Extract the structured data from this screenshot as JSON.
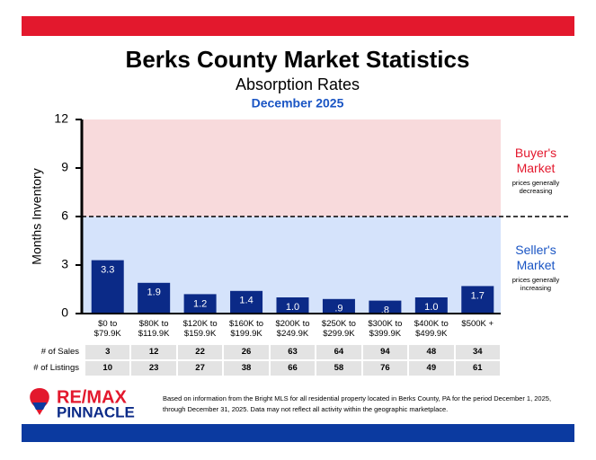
{
  "chart_data": {
    "type": "bar",
    "title": "Berks County Market Statistics",
    "subtitle": "Absorption Rates",
    "date": "December 2025",
    "y_label": "Months Inventory",
    "categories": [
      "$0 to $79.9K",
      "$80K to $119.9K",
      "$120K to $159.9K",
      "$160K to $199.9K",
      "$200K to $249.9K",
      "$250K to $299.9K",
      "$300K to $399.9K",
      "$400K to $499.9K",
      "$500K +"
    ],
    "values": [
      3.3,
      1.9,
      1.2,
      1.4,
      1.0,
      0.9,
      0.8,
      1.0,
      1.7
    ],
    "value_labels": [
      "3.3",
      "1.9",
      "1.2",
      "1.4",
      "1.0",
      ".9",
      ".8",
      "1.0",
      "1.7"
    ],
    "color": "#0b2a87",
    "ylim": [
      0,
      12
    ],
    "yticks": [
      0,
      3,
      6,
      9,
      12
    ],
    "threshold": 6,
    "zones": [
      {
        "label": "Buyer's Market",
        "note": "prices generally decreasing",
        "range": [
          6,
          12
        ],
        "color": "#f8dadc",
        "text_color": "#e3182d"
      },
      {
        "label": "Seller's Market",
        "note": "prices generally increasing",
        "range": [
          0,
          6
        ],
        "color": "#d5e3fb",
        "text_color": "#1a55c4"
      }
    ]
  },
  "table": {
    "rows": [
      {
        "label": "# of Sales",
        "values": [
          3,
          12,
          22,
          26,
          63,
          64,
          94,
          48,
          34
        ]
      },
      {
        "label": "# of Listings",
        "values": [
          10,
          23,
          27,
          38,
          66,
          58,
          76,
          49,
          61
        ]
      }
    ]
  },
  "footer": {
    "brand": "RE/MAX",
    "brand_sub": "PINNACLE",
    "disclaimer": "Based on information from the Bright MLS for all residential property located in Berks County, PA for the period December 1, 2025, through December 31, 2025.  Data may not reflect all activity within the geographic marketplace."
  }
}
